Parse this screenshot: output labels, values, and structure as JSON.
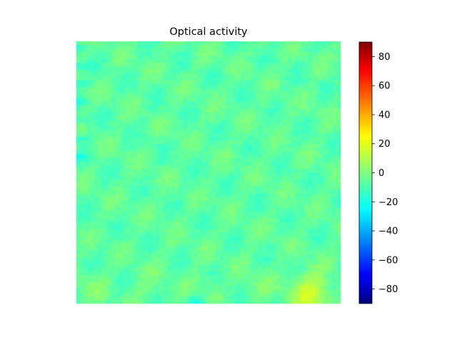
{
  "chart_data": {
    "type": "heatmap",
    "title": "Optical activity",
    "xlabel": "",
    "ylabel": "",
    "axes_visible": false,
    "colormap": "jet",
    "colorbar": {
      "position": "right",
      "vmin": -90,
      "vmax": 90,
      "ticks": [
        -80,
        -60,
        -40,
        -20,
        0,
        20,
        40,
        60,
        80
      ],
      "tick_labels": [
        "−80",
        "−60",
        "−40",
        "−20",
        "0",
        "20",
        "40",
        "60",
        "80"
      ]
    },
    "field": {
      "description_value_range": [
        -22,
        20
      ],
      "typical_value": -6,
      "features": [
        {
          "region": "left-top-edge",
          "value": -20
        },
        {
          "region": "bottom-right-corner",
          "value": 10
        },
        {
          "region": "bottom-center-edge",
          "value": -20
        }
      ]
    }
  },
  "colors": {
    "colorbar_stops": [
      "#00007f",
      "#0000ff",
      "#007fff",
      "#00ffff",
      "#7fff7f",
      "#ffff00",
      "#ff7f00",
      "#ff0000",
      "#7f0000"
    ]
  }
}
